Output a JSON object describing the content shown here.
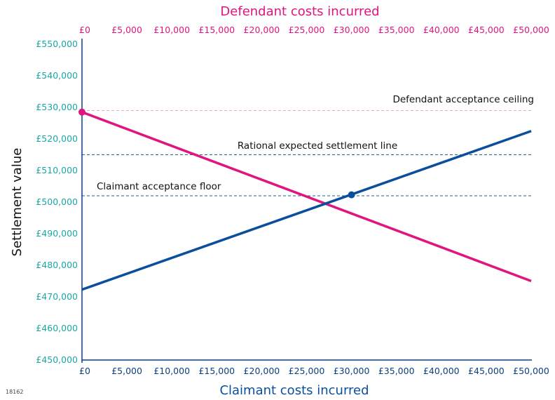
{
  "figure_id": "18162",
  "colors": {
    "defendant": "#e0157f",
    "claimant": "#0b4f9c",
    "ytick": "#1aa6a6",
    "xtick": "#0b3f82",
    "axis": "#0b3f82",
    "ceiling_ref": "#f4a3c6",
    "ref": "#1f5f93"
  },
  "chart_data": {
    "type": "line",
    "title": "",
    "xlabel_bottom": "Claimant costs incurred",
    "xlabel_top": "Defendant costs incurred",
    "ylabel": "Settlement value",
    "xlim": [
      0,
      50000
    ],
    "ylim": [
      450000,
      550000
    ],
    "x_ticks": [
      "£0",
      "£5,000",
      "£10,000",
      "£15,000",
      "£20,000",
      "£25,000",
      "£30,000",
      "£35,000",
      "£40,000",
      "£45,000",
      "£50,000"
    ],
    "x_tick_values": [
      0,
      5000,
      10000,
      15000,
      20000,
      25000,
      30000,
      35000,
      40000,
      45000,
      50000
    ],
    "top_ticks": [
      "£0",
      "£5,000",
      "£10,000",
      "£15,000",
      "£20,000",
      "£25,000",
      "£30,000",
      "£35,000",
      "£40,000",
      "£45,000",
      "£50,000"
    ],
    "y_ticks": [
      "£450,000",
      "£460,000",
      "£470,000",
      "£480,000",
      "£490,000",
      "£500,000",
      "£510,000",
      "£520,000",
      "£530,000",
      "£540,000",
      "£550,000"
    ],
    "y_tick_values": [
      450000,
      460000,
      470000,
      480000,
      490000,
      500000,
      510000,
      520000,
      530000,
      540000,
      550000
    ],
    "grid": false,
    "series": [
      {
        "key": "defendant",
        "color": "#e0157f",
        "x": [
          0,
          50000
        ],
        "y": [
          528500,
          475000
        ]
      },
      {
        "key": "claimant",
        "color": "#0b4f9c",
        "x": [
          0,
          50000
        ],
        "y": [
          472300,
          522500
        ]
      }
    ],
    "markers": [
      {
        "key": "defendant-start",
        "x": 0,
        "y": 528500,
        "color": "#e0157f"
      },
      {
        "key": "claimant-floor-point",
        "x": 30000,
        "y": 502300,
        "color": "#0b4f9c"
      }
    ],
    "reference_lines": [
      {
        "key": "ceiling",
        "label": "Defendant acceptance ceiling",
        "y": 529000,
        "color": "#f4a3c6",
        "x_end": 50000
      },
      {
        "key": "rational",
        "label": "Rational expected settlement line",
        "y": 515000,
        "color": "#1f5f93",
        "x_end": 50000
      },
      {
        "key": "floor",
        "label": "Claimant acceptance floor",
        "y": 502000,
        "color": "#1f5f93",
        "x_end": 50000
      }
    ]
  }
}
